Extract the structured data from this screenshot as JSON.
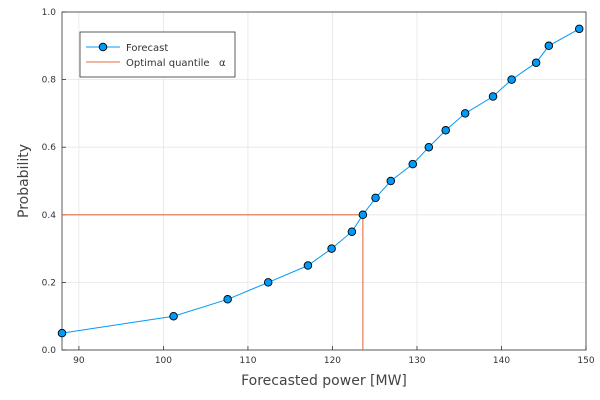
{
  "chart_data": {
    "type": "line",
    "xlabel": "Forecasted power [MW]",
    "ylabel": "Probability",
    "xlim": [
      88,
      150
    ],
    "ylim": [
      0,
      1
    ],
    "xticks": [
      90,
      100,
      110,
      120,
      130,
      140,
      150
    ],
    "yticks": [
      0.0,
      0.2,
      0.4,
      0.6,
      0.8,
      1.0
    ],
    "xtick_labels": [
      "90",
      "100",
      "110",
      "120",
      "130",
      "140",
      "150"
    ],
    "ytick_labels": [
      "0.0",
      "0.2",
      "0.4",
      "0.6",
      "0.8",
      "1.0"
    ],
    "grid": true,
    "legend_position": "top-left",
    "series": [
      {
        "name": "Forecast",
        "color": "#009AF9",
        "marker": "circle",
        "x": [
          88.0,
          101.2,
          107.6,
          112.4,
          117.1,
          119.9,
          122.3,
          123.6,
          125.1,
          126.9,
          129.5,
          131.4,
          133.4,
          135.7,
          139.0,
          141.2,
          144.1,
          145.6,
          149.2
        ],
        "y": [
          0.05,
          0.1,
          0.15,
          0.2,
          0.25,
          0.3,
          0.35,
          0.4,
          0.45,
          0.5,
          0.55,
          0.6,
          0.65,
          0.7,
          0.75,
          0.8,
          0.85,
          0.9,
          0.95
        ]
      },
      {
        "name": "Optimal quantile   α",
        "color": "#E26F46",
        "marker": "none",
        "x": [
          88.0,
          123.6,
          123.6
        ],
        "y": [
          0.4,
          0.4,
          0.0
        ]
      }
    ]
  }
}
